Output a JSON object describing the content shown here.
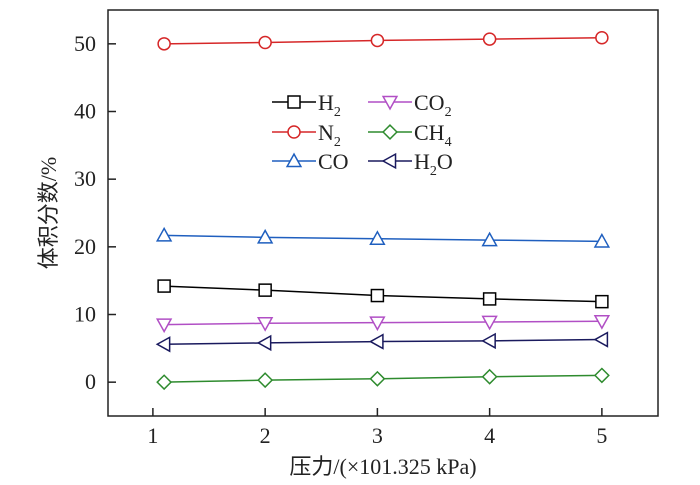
{
  "chart_data": {
    "type": "line",
    "title": "",
    "xlabel": "压力/(×101.325 kPa)",
    "ylabel": "体积分数/%",
    "xlim": [
      0.6,
      5.5
    ],
    "ylim": [
      -5,
      55
    ],
    "xticks": [
      1,
      2,
      3,
      4,
      5
    ],
    "yticks": [
      0,
      10,
      20,
      30,
      40,
      50
    ],
    "x": [
      1.1,
      2,
      3,
      4,
      5
    ],
    "grid": false,
    "legend_position": "upper-center",
    "series": [
      {
        "name": "H2",
        "label_main": "H",
        "label_sub": "2",
        "label_tail": "",
        "marker": "square",
        "color": "#000000",
        "values": [
          14.2,
          13.6,
          12.8,
          12.3,
          11.9
        ]
      },
      {
        "name": "N2",
        "label_main": "N",
        "label_sub": "2",
        "label_tail": "",
        "marker": "circle",
        "color": "#d62728",
        "values": [
          50.0,
          50.2,
          50.5,
          50.7,
          50.9
        ]
      },
      {
        "name": "CO",
        "label_main": "CO",
        "label_sub": "",
        "label_tail": "",
        "marker": "triangle-up",
        "color": "#1f5fbf",
        "values": [
          21.7,
          21.4,
          21.2,
          21.0,
          20.8
        ]
      },
      {
        "name": "CO2",
        "label_main": "CO",
        "label_sub": "2",
        "label_tail": "",
        "marker": "triangle-down",
        "color": "#b14fc5",
        "values": [
          8.5,
          8.7,
          8.8,
          8.9,
          9.0
        ]
      },
      {
        "name": "CH4",
        "label_main": "CH",
        "label_sub": "4",
        "label_tail": "",
        "marker": "diamond",
        "color": "#2e8b2e",
        "values": [
          0.0,
          0.3,
          0.5,
          0.8,
          1.0
        ]
      },
      {
        "name": "H2O",
        "label_main": "H",
        "label_sub": "2",
        "label_tail": "O",
        "marker": "triangle-left",
        "color": "#1a1a5e",
        "values": [
          5.6,
          5.8,
          6.0,
          6.1,
          6.3
        ]
      }
    ]
  }
}
